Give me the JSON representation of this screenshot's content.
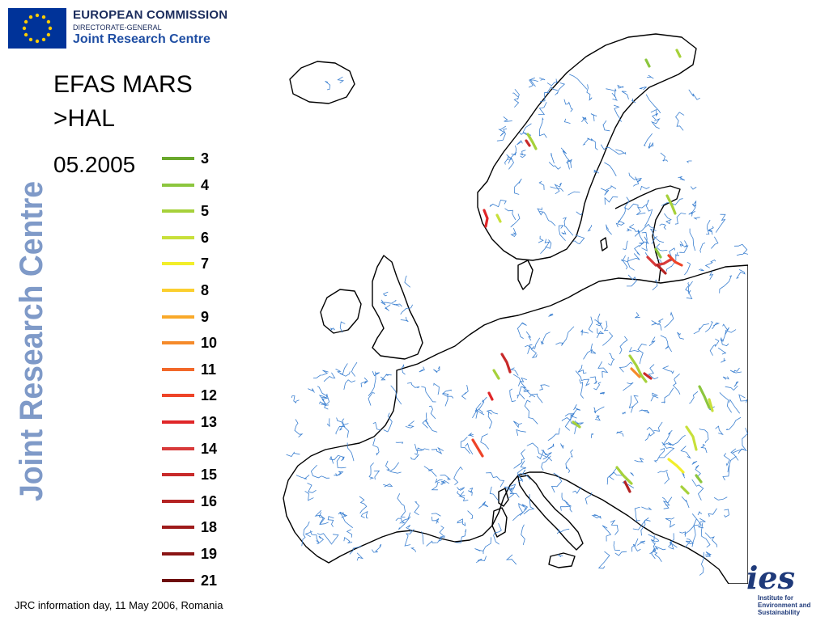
{
  "header": {
    "line1": "EUROPEAN COMMISSION",
    "line2": "DIRECTORATE-GENERAL",
    "line3": "Joint Research Centre"
  },
  "title": {
    "line1": "EFAS MARS",
    "line2": ">HAL"
  },
  "date": "05.2005",
  "side_brand": "Joint Research Centre",
  "legend": [
    {
      "label": "3",
      "color": "#6aa82c"
    },
    {
      "label": "4",
      "color": "#8cc63e"
    },
    {
      "label": "5",
      "color": "#a6d13a"
    },
    {
      "label": "6",
      "color": "#c8e03a"
    },
    {
      "label": "7",
      "color": "#f2ee2a"
    },
    {
      "label": "8",
      "color": "#fbcf2e"
    },
    {
      "label": "9",
      "color": "#f9a92a"
    },
    {
      "label": "10",
      "color": "#f58a2a"
    },
    {
      "label": "11",
      "color": "#f2682a"
    },
    {
      "label": "12",
      "color": "#ee4428"
    },
    {
      "label": "13",
      "color": "#e02628"
    },
    {
      "label": "14",
      "color": "#d83a3a"
    },
    {
      "label": "15",
      "color": "#c82a2a"
    },
    {
      "label": "16",
      "color": "#b42222"
    },
    {
      "label": "18",
      "color": "#9e1a1a"
    },
    {
      "label": "19",
      "color": "#8a1414"
    },
    {
      "label": "21",
      "color": "#6e0c0c"
    }
  ],
  "footer": "JRC information day, 11 May 2006, Romania",
  "ies_logo": {
    "wordmark": "ies",
    "line1": "Institute for",
    "line2": "Environment and",
    "line3": "Sustainability"
  },
  "colors": {
    "river": "#3a7fd0",
    "coast": "#000000",
    "brand_blue": "#1f4ea3",
    "side_brand": "#7f9ac8"
  }
}
